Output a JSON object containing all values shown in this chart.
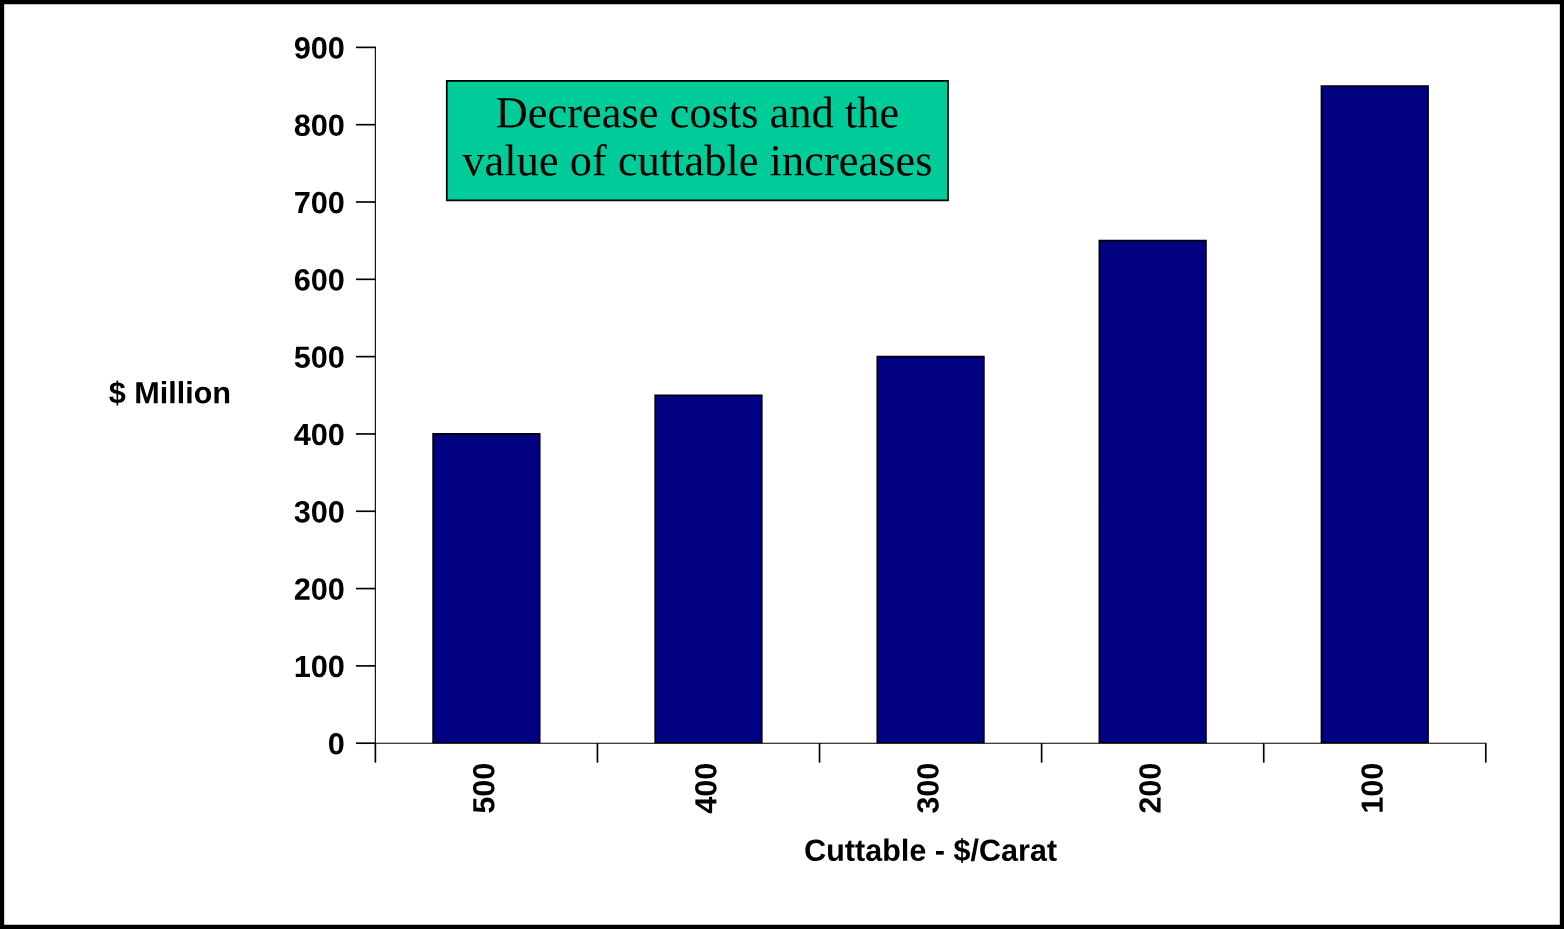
{
  "chart_data": {
    "type": "bar",
    "xlabel": "Cuttable - $/Carat",
    "ylabel": "$ Million",
    "categories": [
      "500",
      "400",
      "300",
      "200",
      "100"
    ],
    "values": [
      400,
      450,
      500,
      650,
      850
    ],
    "color": "#000080",
    "ylim": [
      0,
      900
    ],
    "yticks": [
      0,
      100,
      200,
      300,
      400,
      500,
      600,
      700,
      800,
      900
    ],
    "grid": false,
    "legend": false,
    "annotations": [
      "Decrease costs and the\nvalue of cuttable increases"
    ]
  }
}
